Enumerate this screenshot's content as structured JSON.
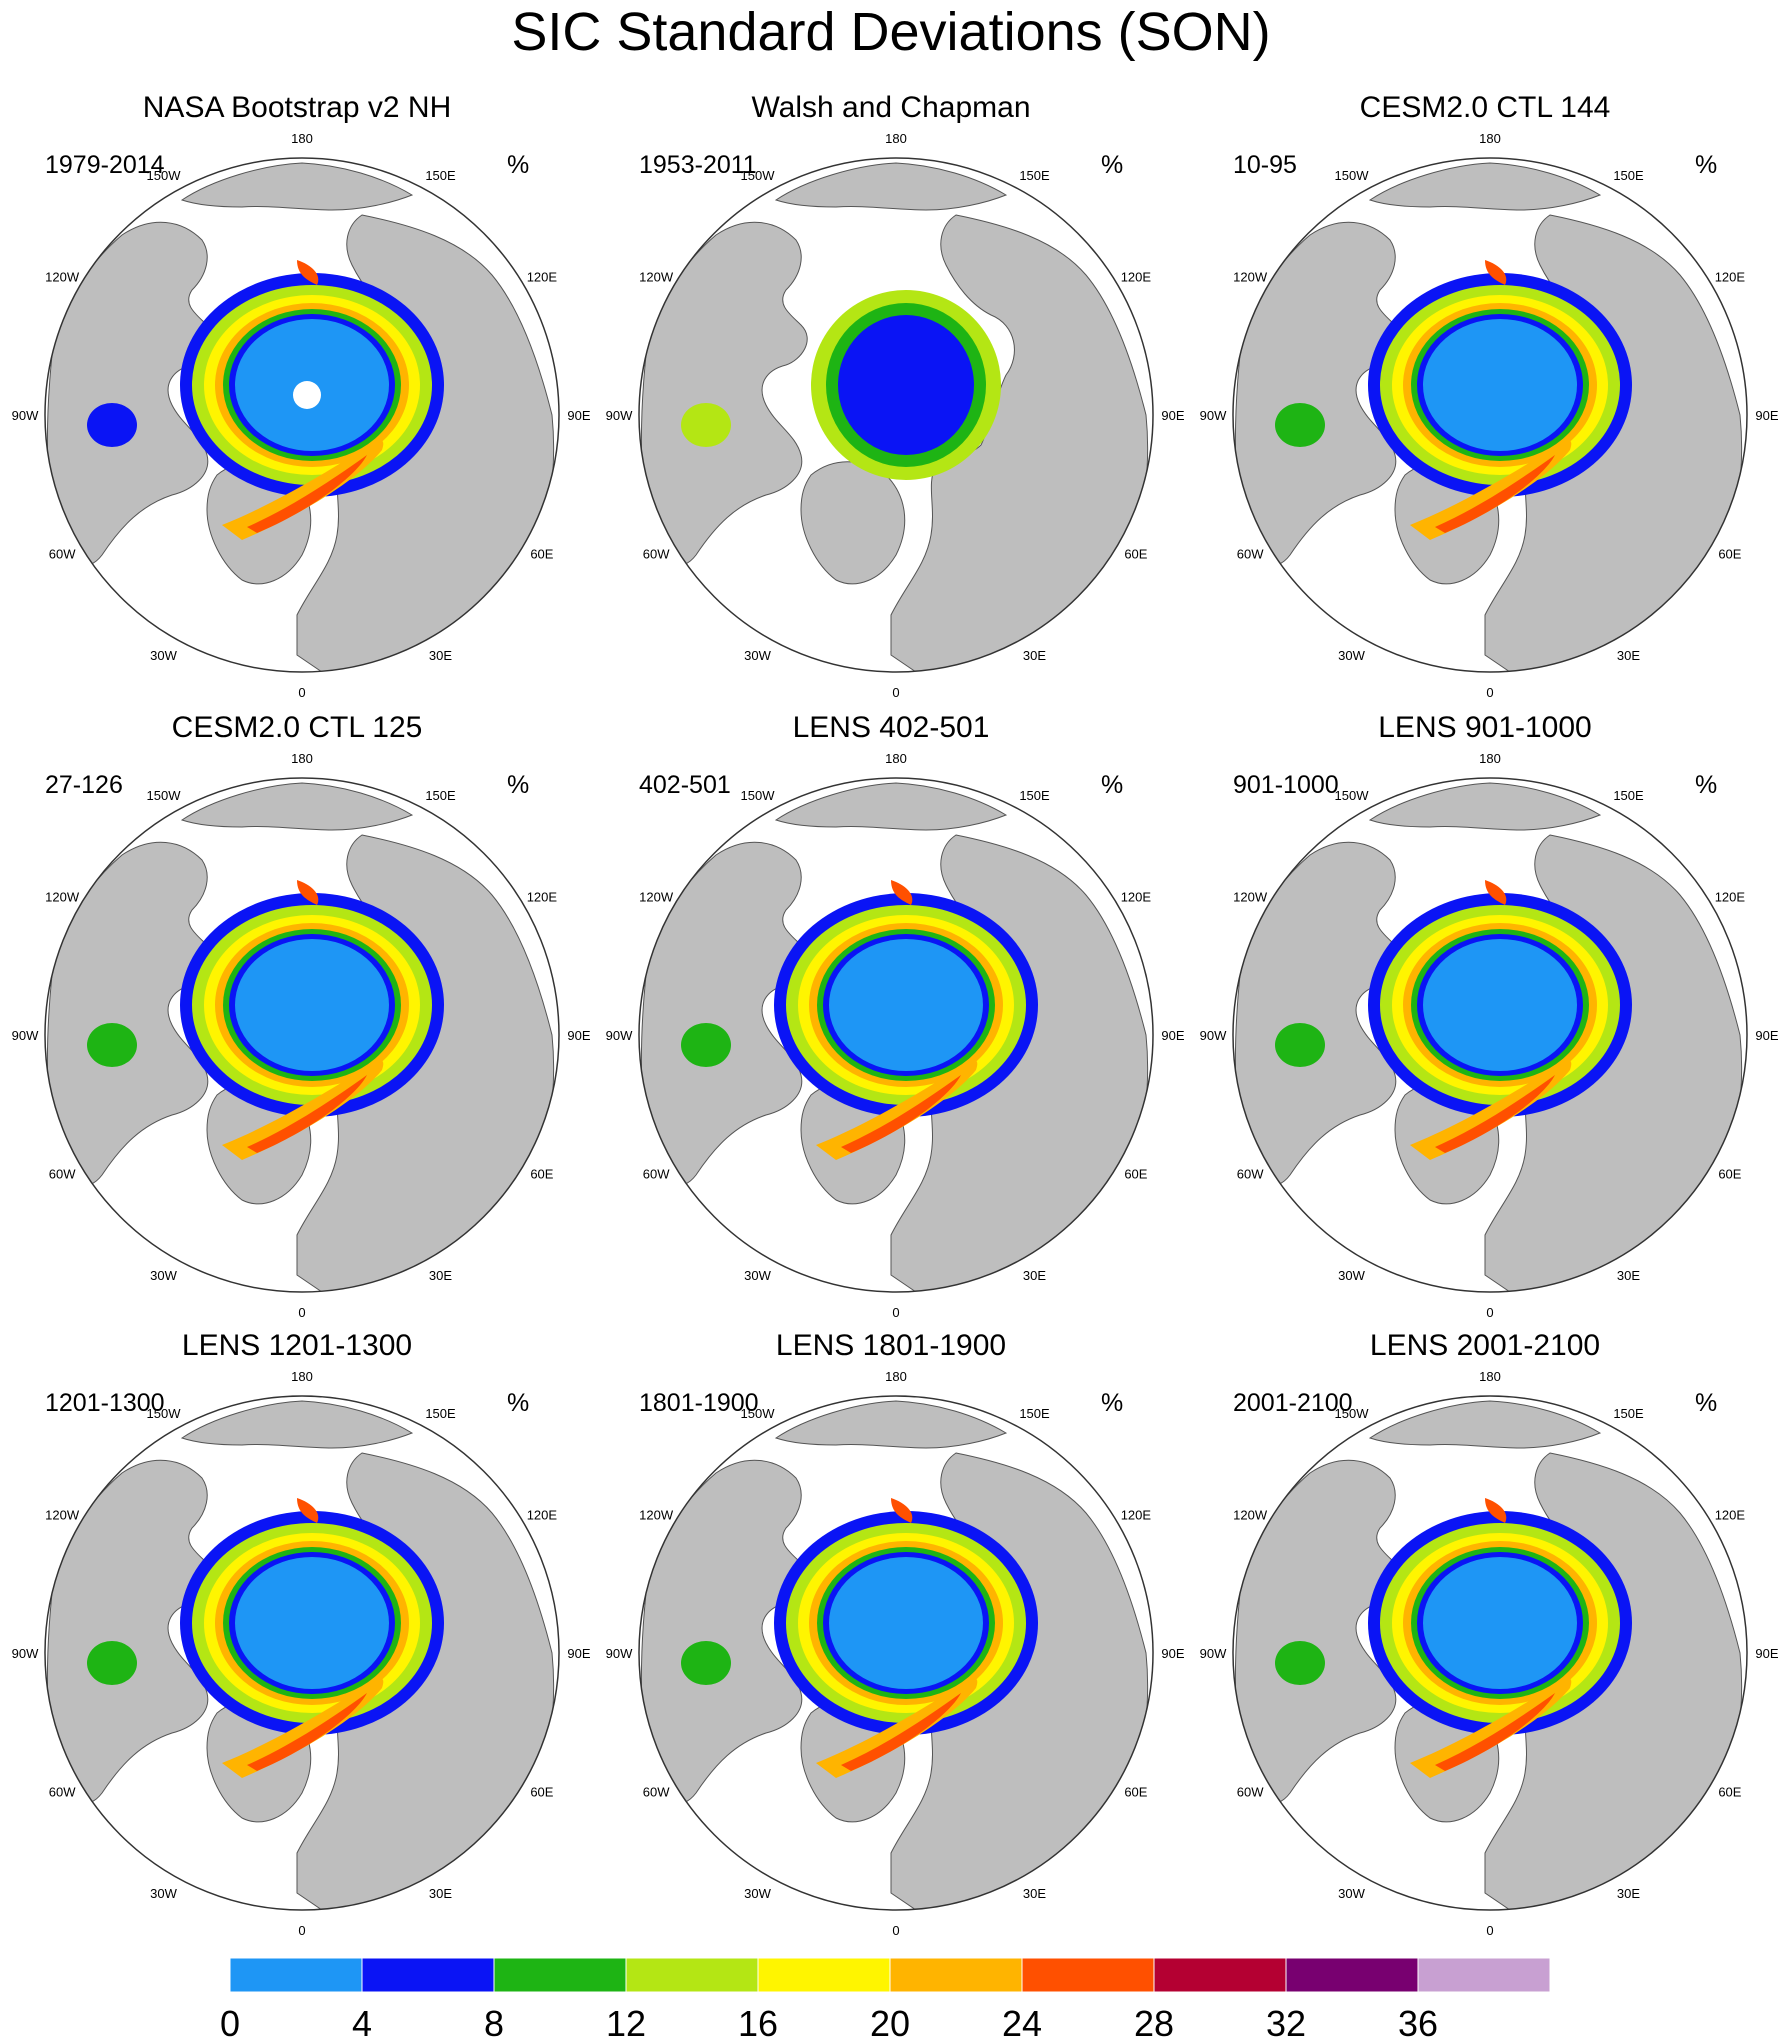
{
  "title": "SIC Standard Deviations (SON)",
  "unit": "%",
  "land_color": "#bebebe",
  "ocean_color": "#ffffff",
  "longitude_labels": [
    "180",
    "150E",
    "120E",
    "90E",
    "60E",
    "30E",
    "0",
    "30W",
    "60W",
    "90W",
    "120W",
    "150W"
  ],
  "panels": [
    {
      "title": "NASA Bootstrap v2 NH",
      "period": "1979-2014"
    },
    {
      "title": "Walsh and Chapman",
      "period": "1953-2011"
    },
    {
      "title": "CESM2.0 CTL 144",
      "period": "10-95"
    },
    {
      "title": "CESM2.0 CTL 125",
      "period": "27-126"
    },
    {
      "title": "LENS 402-501",
      "period": "402-501"
    },
    {
      "title": "LENS 901-1000",
      "period": "901-1000"
    },
    {
      "title": "LENS 1201-1300",
      "period": "1201-1300"
    },
    {
      "title": "LENS 1801-1900",
      "period": "1801-1900"
    },
    {
      "title": "LENS 2001-2100",
      "period": "2001-2100"
    }
  ],
  "colorbar": {
    "labels": [
      "0",
      "4",
      "8",
      "12",
      "16",
      "20",
      "24",
      "28",
      "32",
      "36"
    ],
    "colors": [
      "#1e96f5",
      "#0a14f5",
      "#1eb414",
      "#b4e614",
      "#fff500",
      "#ffb400",
      "#ff5000",
      "#b40032",
      "#780070",
      "#c8a0d2"
    ]
  }
}
